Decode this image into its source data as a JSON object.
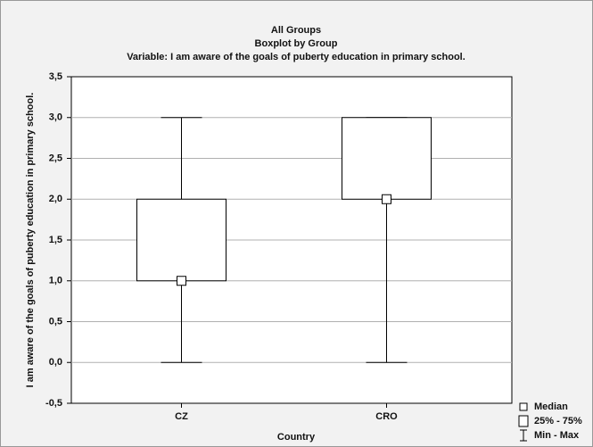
{
  "chart_data": {
    "type": "boxplot",
    "title_lines": [
      "All Groups",
      "Boxplot by Group",
      "Variable: I am aware of the goals of puberty education in primary school."
    ],
    "x_label": "Country",
    "y_label": "I am aware of the goals of puberty education in primary school.",
    "categories": [
      "CZ",
      "CRO"
    ],
    "boxes": [
      {
        "min": 0,
        "q1": 1,
        "median": 1,
        "q3": 2,
        "max": 3
      },
      {
        "min": 0,
        "q1": 2,
        "median": 2,
        "q3": 3,
        "max": 3
      }
    ],
    "ylim": [
      -0.5,
      3.5
    ],
    "yticks": [
      {
        "value": -0.5,
        "label": "-0,5"
      },
      {
        "value": 0,
        "label": "0,0"
      },
      {
        "value": 0.5,
        "label": "0,5"
      },
      {
        "value": 1,
        "label": "1,0"
      },
      {
        "value": 1.5,
        "label": "1,5"
      },
      {
        "value": 2,
        "label": "2,0"
      },
      {
        "value": 2.5,
        "label": "2,5"
      },
      {
        "value": 3,
        "label": "3,0"
      },
      {
        "value": 3.5,
        "label": "3,5"
      }
    ],
    "grid": true,
    "legend": [
      "Median",
      "25% - 75%",
      "Min - Max"
    ],
    "legend_position": "bottom-right",
    "color": "#ffffff"
  }
}
